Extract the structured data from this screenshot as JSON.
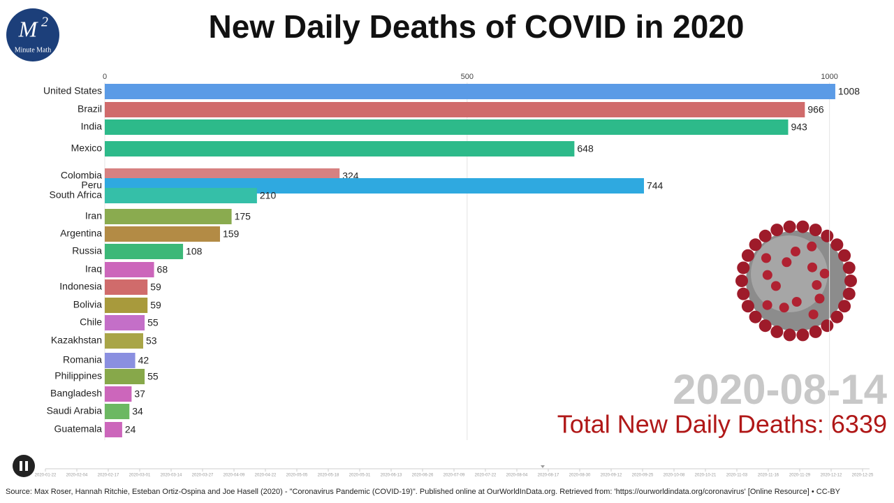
{
  "chart_data": {
    "type": "bar",
    "orientation": "horizontal",
    "title": "New Daily Deaths of COVID in 2020",
    "categories": [
      "United States",
      "Brazil",
      "India",
      "Mexico",
      "Colombia",
      "Peru",
      "South Africa",
      "Iran",
      "Argentina",
      "Russia",
      "Iraq",
      "Indonesia",
      "Bolivia",
      "Chile",
      "Kazakhstan",
      "Romania",
      "Philippines",
      "Bangladesh",
      "Saudi Arabia",
      "Guatemala"
    ],
    "values": [
      1008,
      966,
      943,
      648,
      324,
      744,
      210,
      175,
      159,
      108,
      68,
      59,
      59,
      55,
      53,
      42,
      55,
      37,
      34,
      24
    ],
    "colors": [
      "#5b9be6",
      "#d06b6b",
      "#2dba8a",
      "#2dba8a",
      "#d06b6b",
      "#2fa9e0",
      "#35bfa8",
      "#8aab4f",
      "#b38b45",
      "#3cb878",
      "#cc66bb",
      "#d06b6b",
      "#a89a3c",
      "#c46fc8",
      "#a9a547",
      "#8a8fe0",
      "#87a84a",
      "#cc66bb",
      "#6cb862",
      "#cc66bb"
    ],
    "xlim": [
      0,
      1010
    ],
    "xticks": [
      0,
      500,
      1000
    ],
    "grid": true,
    "date": "2020-08-14",
    "total_label": "Total New Daily Deaths: 6339"
  },
  "logo": {
    "mark": "M",
    "exponent": "2",
    "name": "Minute Math"
  },
  "timeline": [
    "2020-01-22",
    "2020-02-04",
    "2020-02-17",
    "2020-03-01",
    "2020-03-14",
    "2020-03-27",
    "2020-04-09",
    "2020-04-22",
    "2020-05-05",
    "2020-05-18",
    "2020-05-31",
    "2020-06-13",
    "2020-06-26",
    "2020-07-09",
    "2020-07-22",
    "2020-08-04",
    "2020-08-17",
    "2020-08-30",
    "2020-09-12",
    "2020-09-25",
    "2020-10-08",
    "2020-10-21",
    "2020-11-03",
    "2020-11-16",
    "2020-11-29",
    "2020-12-12",
    "2020-12-25"
  ],
  "source": "Source: Max Roser, Hannah Ritchie, Esteban Ortiz-Ospina and Joe Hasell (2020) - \"Coronavirus Pandemic (COVID-19)\". Published online at OurWorldInData.org. Retrieved from: 'https://ourworldindata.org/coronavirus' [Online Resource] • CC-BY"
}
